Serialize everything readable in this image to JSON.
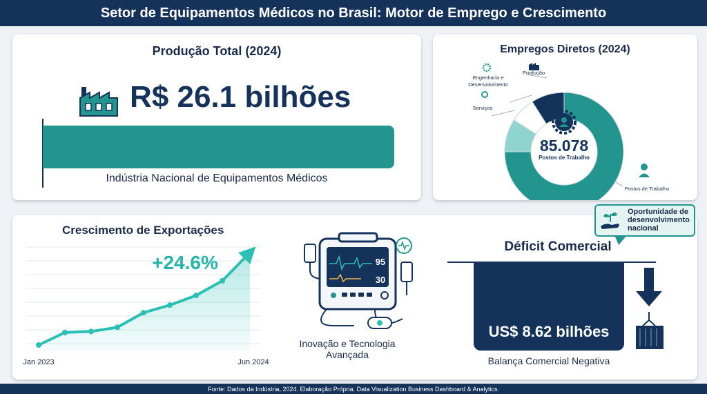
{
  "header": {
    "title": "Setor de Equipamentos Médicos no Brasil: Motor de Emprego e Crescimento"
  },
  "production": {
    "title": "Produção Total (2024)",
    "value": "R$ 26.1 bilhões",
    "subtitle": "Indústria Nacional de Equipamentos Médicos",
    "icon": "factory-icon"
  },
  "jobs": {
    "title": "Empregos Diretos (2024)",
    "total": "85.078",
    "total_label": "Postos de Trabalho"
  },
  "exports": {
    "title": "Crescimento de Exportações",
    "growth": "+24.6%"
  },
  "innovation": {
    "label": "Inovação e Tecnologia Avançada",
    "monitor_values": [
      "95",
      "30"
    ]
  },
  "deficit": {
    "title": "Déficit Comercial",
    "value": "US$ 8.62 bilhões",
    "subtitle": "Balança Comercial Negativa"
  },
  "callout": {
    "text": "Oportunidade de desenvolvimento nacional"
  },
  "footer": {
    "source": "Fonte: Dados da Indústria, 2024. Elaboração Própria. Data Visualization Business Dashboard & Analytics."
  },
  "colors": {
    "navy": "#15325a",
    "teal": "#22958e",
    "light_teal": "#8fd4cf",
    "line_teal": "#2cc0b5"
  },
  "chart_data": [
    {
      "type": "pie",
      "title": "Empregos Diretos (2024)",
      "slices": [
        {
          "name": "Postos de Trabalho",
          "value": 75,
          "color": "#22958e"
        },
        {
          "name": "Serviços",
          "value": 9,
          "color": "#8fd4cf"
        },
        {
          "name": "Engenharia e Desenvolvimento",
          "value": 7,
          "color": "#ffffff"
        },
        {
          "name": "Produção",
          "value": 9,
          "color": "#15325a"
        }
      ]
    },
    {
      "type": "line",
      "title": "Crescimento de Exportações",
      "x_labels": [
        "Jan 2023",
        "Jun 2024"
      ],
      "values": [
        0,
        4.8,
        5.2,
        6.8,
        12.4,
        15.3,
        19.0,
        24.6
      ],
      "annotation": "+24.6%"
    }
  ]
}
